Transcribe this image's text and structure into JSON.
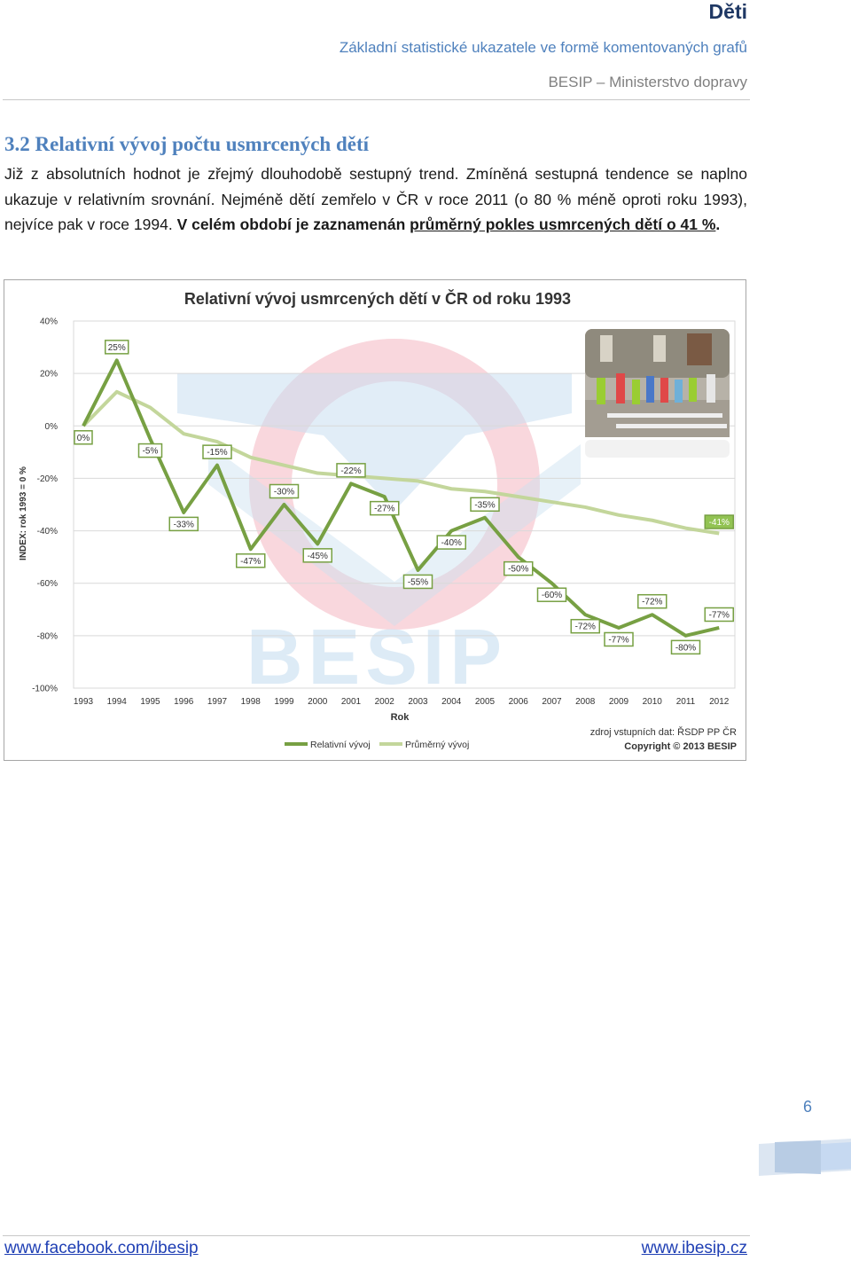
{
  "header": {
    "title": "Děti",
    "subtitle": "Základní statistické ukazatele ve formě komentovaných grafů",
    "publisher": "BESIP – Ministerstvo dopravy"
  },
  "section": {
    "heading": "3.2 Relativní vývoj počtu usmrcených dětí",
    "paragraph": {
      "part1": "Již z absolutních hodnot je zřejmý dlouhodobě sestupný trend. Zmíněná sestupná tendence se naplno ukazuje v relativním srovnání. Nejméně dětí zemřelo v ČR v roce 2011 (o 80 % méně oproti roku 1993), nejvíce pak v roce 1994. ",
      "bold_part": "V celém období je zaznamenán ",
      "underlined_part": "průměrný pokles usmrcených dětí o 41 %",
      "ending": "."
    }
  },
  "chart_data": {
    "type": "line",
    "title": "Relativní vývoj usmrcených dětí v ČR od roku 1993",
    "xlabel": "Rok",
    "ylabel": "INDEX: rok 1993 = 0 %",
    "ylim": [
      -100,
      40
    ],
    "yticks": [
      "40%",
      "20%",
      "0%",
      "-20%",
      "-40%",
      "-60%",
      "-80%",
      "-100%"
    ],
    "ytick_values": [
      40,
      20,
      0,
      -20,
      -40,
      -60,
      -80,
      -100
    ],
    "categories": [
      "1993",
      "1994",
      "1995",
      "1996",
      "1997",
      "1998",
      "1999",
      "2000",
      "2001",
      "2002",
      "2003",
      "2004",
      "2005",
      "2006",
      "2007",
      "2008",
      "2009",
      "2010",
      "2011",
      "2012"
    ],
    "series": [
      {
        "name": "Relativní vývoj",
        "color": "#77a043",
        "values": [
          0,
          25,
          -5,
          -33,
          -15,
          -47,
          -30,
          -45,
          -22,
          -27,
          -55,
          -40,
          -35,
          -50,
          -60,
          -72,
          -77,
          -72,
          -80,
          -77
        ],
        "labels": [
          "0%",
          "25%",
          "-5%",
          "-33%",
          "-15%",
          "-47%",
          "-30%",
          "-45%",
          "-22%",
          "-27%",
          "-55%",
          "-40%",
          "-35%",
          "-50%",
          "-60%",
          "-72%",
          "-77%",
          "-72%",
          "-80%",
          "-77%"
        ]
      },
      {
        "name": "Průměrný vývoj",
        "color": "#c3d69b",
        "values": [
          0,
          13,
          7,
          -3,
          -6,
          -12,
          -15,
          -18,
          -19,
          -20,
          -21,
          -24,
          -25,
          -27,
          -29,
          -31,
          -34,
          -36,
          -39,
          -41
        ],
        "end_label": "-41%"
      }
    ],
    "grid": true,
    "legend": "bottom",
    "source_note": "zdroj vstupních dat: ŘSDP PP ČR",
    "copyright": "Copyright © 2013 BESIP",
    "watermark": "BESIP"
  },
  "page_number": "6",
  "footer": {
    "left_link": "www.facebook.com/ibesip",
    "right_link": "www.ibesip.cz"
  }
}
